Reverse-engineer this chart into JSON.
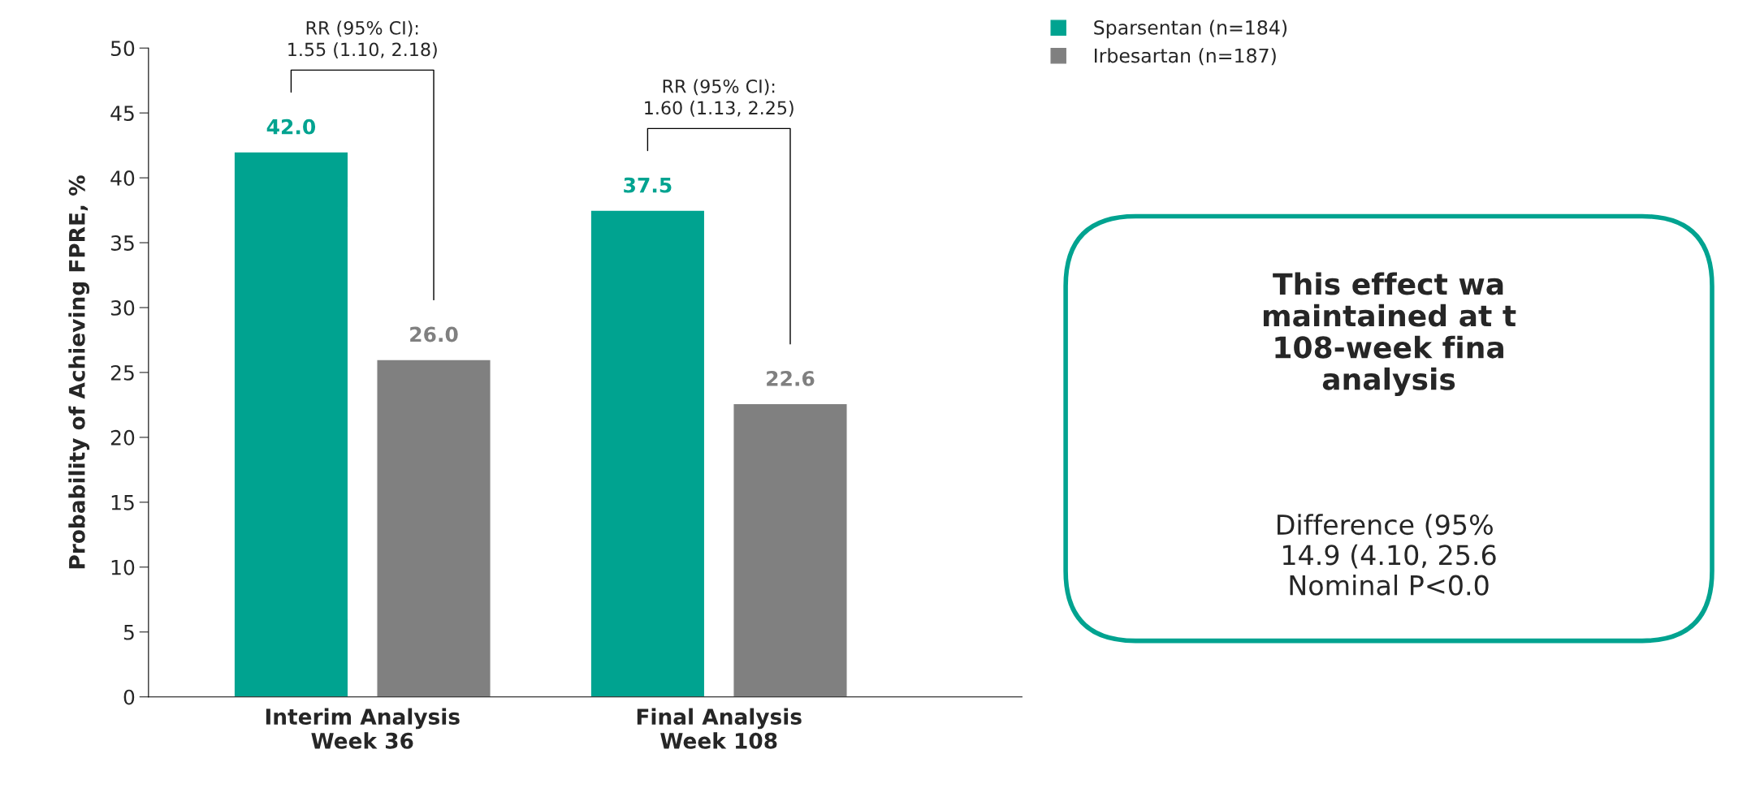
{
  "chart_data": {
    "type": "bar",
    "ylabel": "Probability of Achieving FPRE, %",
    "categories": [
      "Interim Analysis\nWeek 36",
      "Final Analysis\nWeek 108"
    ],
    "series": [
      {
        "name": "Sparsentan (n=184)",
        "color": "#00a390",
        "values": [
          42.0,
          37.5
        ],
        "value_labels": [
          "42.0",
          "37.5"
        ]
      },
      {
        "name": "Irbesartan (n=187)",
        "color": "#808080",
        "values": [
          26.0,
          22.6
        ],
        "value_labels": [
          "26.0",
          "22.6"
        ]
      }
    ],
    "ylim": [
      0,
      50
    ],
    "yticks": [
      0,
      5,
      10,
      15,
      20,
      25,
      30,
      35,
      40,
      45,
      50
    ],
    "grid": false,
    "legend": "top right",
    "marker": "square",
    "annotations": [
      "RR (95% CI):\n1.55 (1.10, 2.18)",
      "RR (95% CI):\n1.60 (1.13, 2.25)",
      "This effect wa\nmaintained at t\n108-week fina\nanalysis",
      "Difference (95% \n14.9 (4.10, 25.6\nNominal P<0.0"
    ]
  }
}
